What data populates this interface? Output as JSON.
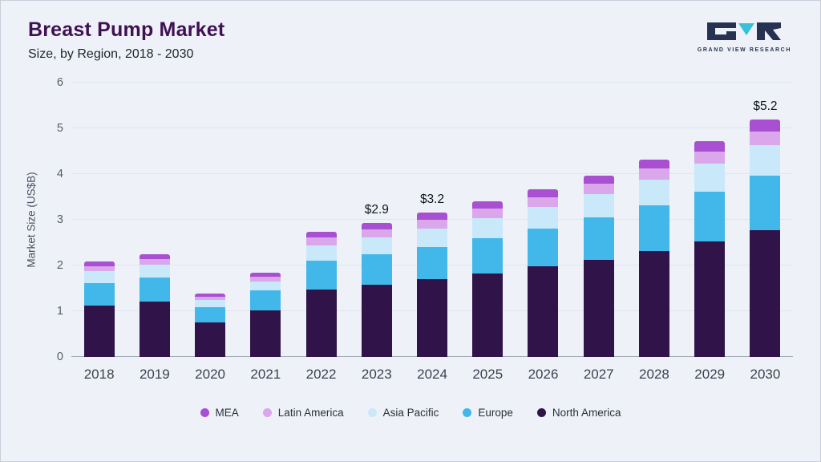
{
  "header": {
    "title": "Breast Pump Market",
    "subtitle": "Size, by Region, 2018 - 2030"
  },
  "logo": {
    "text": "GRAND VIEW RESEARCH",
    "dark_color": "#273252",
    "teal_color": "#36c2d8"
  },
  "chart_data": {
    "type": "bar",
    "stacked": true,
    "title": "Breast Pump Market Size, by Region, 2018 - 2030",
    "ylabel": "Market Size (US$B)",
    "ylim": [
      0,
      6
    ],
    "yticks": [
      0,
      1,
      2,
      3,
      4,
      5,
      6
    ],
    "grid": true,
    "legend_position": "bottom",
    "categories": [
      "2018",
      "2019",
      "2020",
      "2021",
      "2022",
      "2023",
      "2024",
      "2025",
      "2026",
      "2027",
      "2028",
      "2029",
      "2030"
    ],
    "series": [
      {
        "name": "North America",
        "color": "#301349",
        "values": [
          1.12,
          1.21,
          0.76,
          1.01,
          1.48,
          1.58,
          1.71,
          1.83,
          1.98,
          2.13,
          2.32,
          2.53,
          2.78
        ]
      },
      {
        "name": "Europe",
        "color": "#42b7e9",
        "values": [
          0.5,
          0.53,
          0.33,
          0.44,
          0.62,
          0.66,
          0.7,
          0.77,
          0.83,
          0.92,
          1.0,
          1.08,
          1.18
        ]
      },
      {
        "name": "Asia Pacific",
        "color": "#c9e9fa",
        "values": [
          0.25,
          0.27,
          0.15,
          0.2,
          0.34,
          0.37,
          0.4,
          0.43,
          0.47,
          0.51,
          0.56,
          0.61,
          0.67
        ]
      },
      {
        "name": "Latin America",
        "color": "#d9a7ea",
        "values": [
          0.12,
          0.13,
          0.08,
          0.11,
          0.17,
          0.18,
          0.19,
          0.21,
          0.22,
          0.23,
          0.24,
          0.27,
          0.3
        ]
      },
      {
        "name": "MEA",
        "color": "#a94fd1",
        "values": [
          0.1,
          0.11,
          0.07,
          0.09,
          0.13,
          0.14,
          0.15,
          0.16,
          0.17,
          0.18,
          0.2,
          0.23,
          0.27
        ]
      }
    ],
    "annotations": [
      {
        "category": "2023",
        "text": "$2.9"
      },
      {
        "category": "2024",
        "text": "$3.2"
      },
      {
        "category": "2030",
        "text": "$5.2"
      }
    ],
    "legend_order": [
      "MEA",
      "Latin America",
      "Asia Pacific",
      "Europe",
      "North America"
    ]
  }
}
